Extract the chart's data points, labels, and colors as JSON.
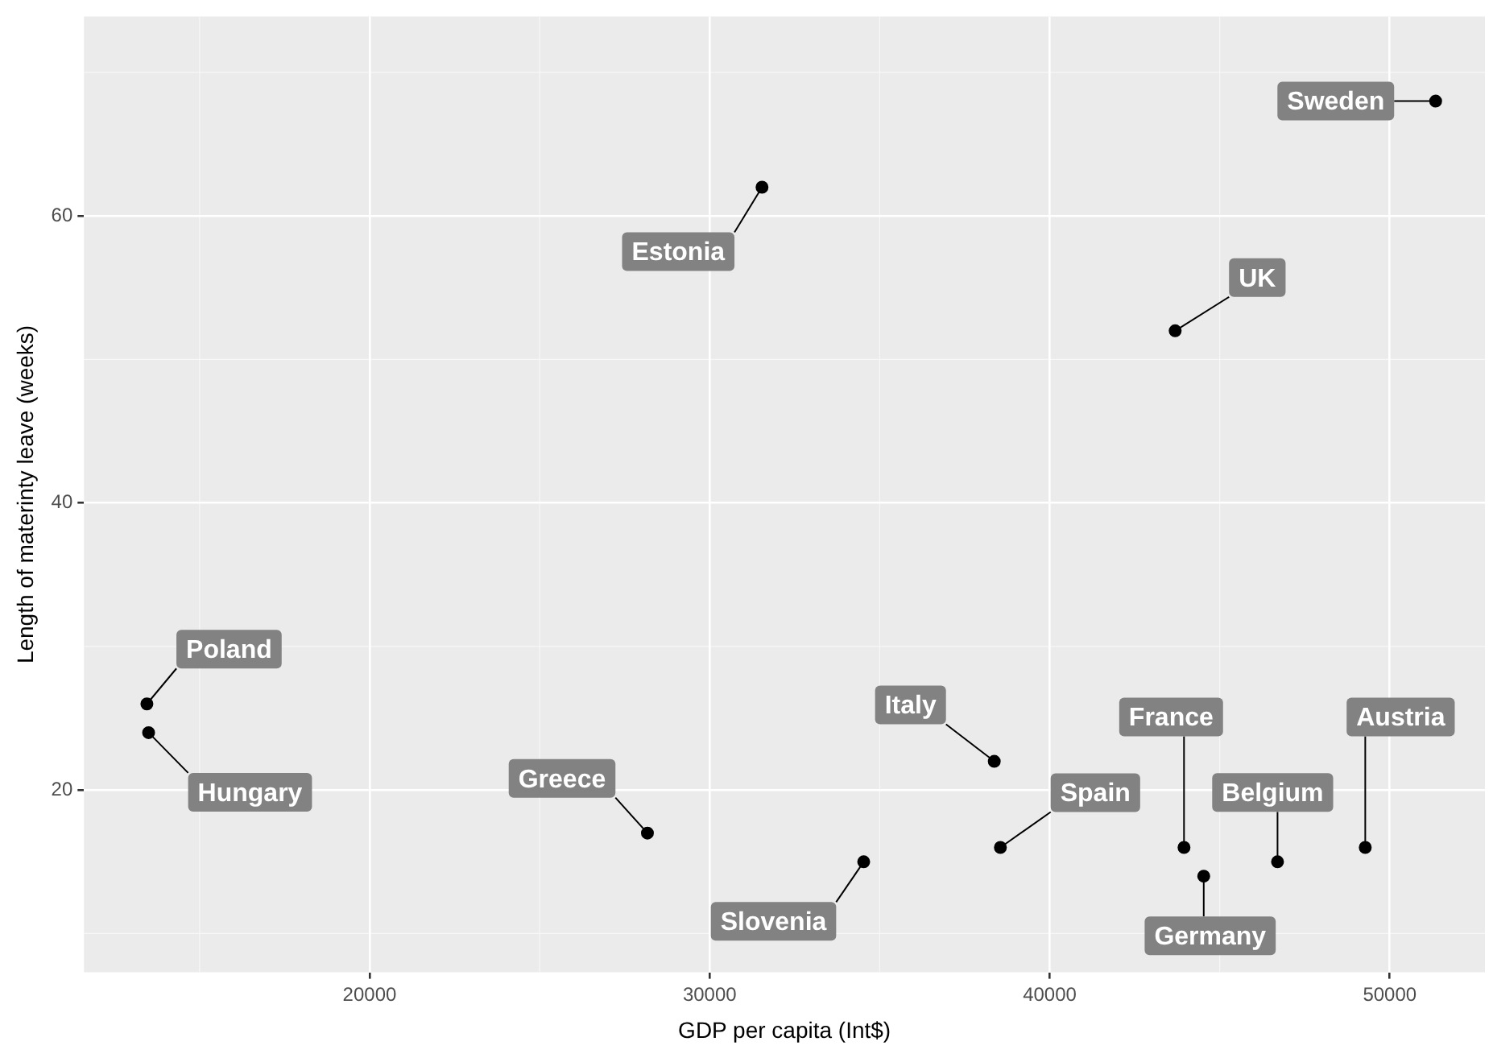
{
  "chart_data": {
    "type": "scatter",
    "xlabel": "GDP per capita (Int$)",
    "ylabel": "Length of materinty leave (weeks)",
    "series": [
      {
        "color": "#000000",
        "x": [
          51350,
          31540,
          43690,
          13450,
          13500,
          28170,
          34530,
          38370,
          38550,
          43950,
          44530,
          46700,
          49280
        ],
        "values": [
          68,
          62,
          52,
          26,
          24,
          17,
          15,
          22,
          16,
          16,
          14,
          15,
          16
        ]
      }
    ],
    "xlim": [
      11600,
      52800
    ],
    "ylim": [
      7.3,
      73.9
    ],
    "xticks": [
      20000,
      30000,
      40000,
      50000
    ],
    "yticks": [
      20,
      40,
      60
    ],
    "grid": true,
    "legend": false,
    "marker": "circle",
    "annotations": [
      {
        "text": "Sweden",
        "x": 51350,
        "y": 68
      },
      {
        "text": "Estonia",
        "x": 31540,
        "y": 62
      },
      {
        "text": "UK",
        "x": 43690,
        "y": 52
      },
      {
        "text": "Poland",
        "x": 13450,
        "y": 26
      },
      {
        "text": "Hungary",
        "x": 13500,
        "y": 24
      },
      {
        "text": "Greece",
        "x": 28170,
        "y": 17
      },
      {
        "text": "Slovenia",
        "x": 34530,
        "y": 15
      },
      {
        "text": "Italy",
        "x": 38370,
        "y": 22
      },
      {
        "text": "Spain",
        "x": 38550,
        "y": 16
      },
      {
        "text": "France",
        "x": 43950,
        "y": 16
      },
      {
        "text": "Germany",
        "x": 44530,
        "y": 14
      },
      {
        "text": "Belgium",
        "x": 46700,
        "y": 15
      },
      {
        "text": "Austria",
        "x": 49280,
        "y": 16
      }
    ]
  }
}
